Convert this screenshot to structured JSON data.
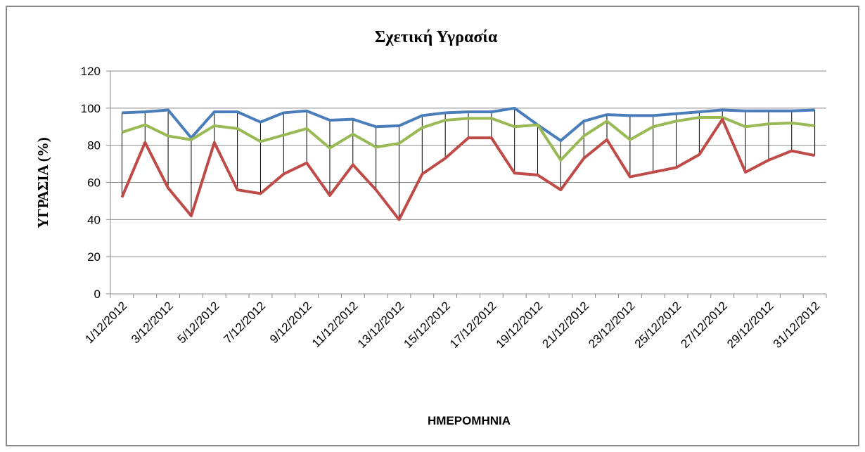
{
  "chart_data": {
    "type": "line",
    "title": "Σχετική Υγρασία",
    "x_label": "ΗΜΕΡΟΜΗΝΙΑ",
    "y_label": "ΥΓΡΑΣΙΑ (%)",
    "categories": [
      "1/12/2012",
      null,
      "3/12/2012",
      null,
      "5/12/2012",
      null,
      "7/12/2012",
      null,
      "9/12/2012",
      null,
      "11/12/2012",
      null,
      "13/12/2012",
      null,
      "15/12/2012",
      null,
      "17/12/2012",
      null,
      "19/12/2012",
      null,
      "21/12/2012",
      null,
      "23/12/2012",
      null,
      "25/12/2012",
      null,
      "27/12/2012",
      null,
      "29/12/2012",
      null,
      "31/12/2012"
    ],
    "series": [
      {
        "color": "#4a7ebb",
        "values": [
          97.5,
          98,
          99,
          84,
          98,
          98,
          92.5,
          97.5,
          98.5,
          93.5,
          94,
          90,
          90.5,
          96,
          97.5,
          98,
          98,
          100,
          91,
          82.5,
          93,
          96.5,
          96,
          96,
          97,
          98,
          99,
          98.5,
          98.5,
          98.5,
          99
        ]
      },
      {
        "color": "#98b954",
        "values": [
          87,
          91,
          85,
          83,
          90.5,
          89,
          82,
          85.5,
          89,
          78.5,
          86,
          79,
          81,
          89.5,
          93.5,
          94.5,
          94.5,
          90,
          91,
          72,
          85,
          93,
          83,
          90,
          93,
          95,
          95,
          90,
          91.5,
          92,
          90.5
        ]
      },
      {
        "color": "#be4b48",
        "values": [
          52,
          81.5,
          57,
          42,
          81.5,
          56,
          54,
          64.5,
          70.5,
          53,
          69.5,
          56,
          40,
          64.5,
          73,
          84,
          84,
          65,
          64,
          56,
          73,
          83,
          63,
          65.5,
          68,
          75,
          94,
          65.5,
          72,
          77,
          74.5
        ]
      }
    ],
    "ylim": [
      0,
      120
    ],
    "yticks": [
      0,
      20,
      40,
      60,
      80,
      100,
      120
    ],
    "grid": true,
    "high_low_lines": true
  }
}
